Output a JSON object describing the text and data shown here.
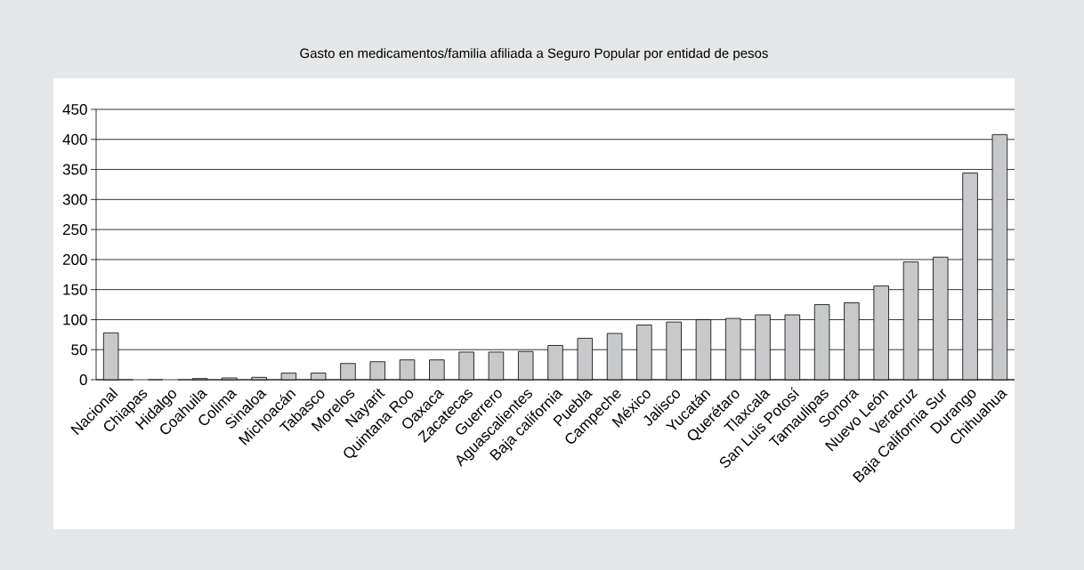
{
  "chart_data": {
    "type": "bar",
    "title": "Gasto en medicamentos/familia afiliada a Seguro Popular por entidad de pesos",
    "categories": [
      "Nacional",
      "Chiapas",
      "Hidalgo",
      "Coahuila",
      "Colima",
      "Sinaloa",
      "Michoacán",
      "Tabasco",
      "Morelos",
      "Nayarit",
      "Quintana Roo",
      "Oaxaca",
      "Zacatecas",
      "Guerrero",
      "Aguascalientes",
      "Baja california",
      "Puebla",
      "Campeche",
      "México",
      "Jalisco",
      "Yucatán",
      "Querétaro",
      "Tlaxcala",
      "San Luis Potosí",
      "Tamaulipas",
      "Sonora",
      "Nuevo León",
      "Veracruz",
      "Baja California Sur",
      "Durango",
      "Chihuahua"
    ],
    "values": [
      78,
      0,
      0,
      2,
      3,
      4,
      11,
      11,
      27,
      30,
      33,
      33,
      46,
      46,
      47,
      57,
      69,
      77,
      91,
      96,
      100,
      102,
      108,
      108,
      125,
      128,
      156,
      196,
      204,
      344,
      408
    ],
    "color": "#c8c9cb",
    "ylim": [
      0,
      450
    ],
    "yticks": [
      0,
      50,
      100,
      150,
      200,
      250,
      300,
      350,
      400,
      450
    ],
    "grid": "y"
  }
}
